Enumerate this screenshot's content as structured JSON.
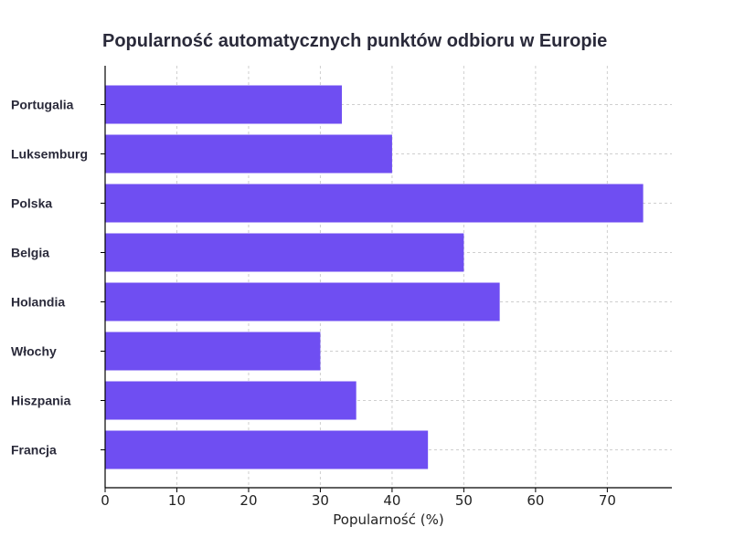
{
  "chart_data": {
    "type": "bar",
    "orientation": "horizontal",
    "title": "Popularność automatycznych punktów odbioru w Europie",
    "xlabel": "Popularność (%)",
    "ylabel": "",
    "categories": [
      "Portugalia",
      "Luksemburg",
      "Polska",
      "Belgia",
      "Holandia",
      "Włochy",
      "Hiszpania",
      "Francja"
    ],
    "values": [
      33,
      40,
      75,
      50,
      55,
      30,
      35,
      45
    ],
    "xlim": [
      0,
      79
    ],
    "xticks": [
      0,
      10,
      20,
      30,
      40,
      50,
      60,
      70
    ],
    "grid": true,
    "bar_color": "#6f4ef2"
  }
}
